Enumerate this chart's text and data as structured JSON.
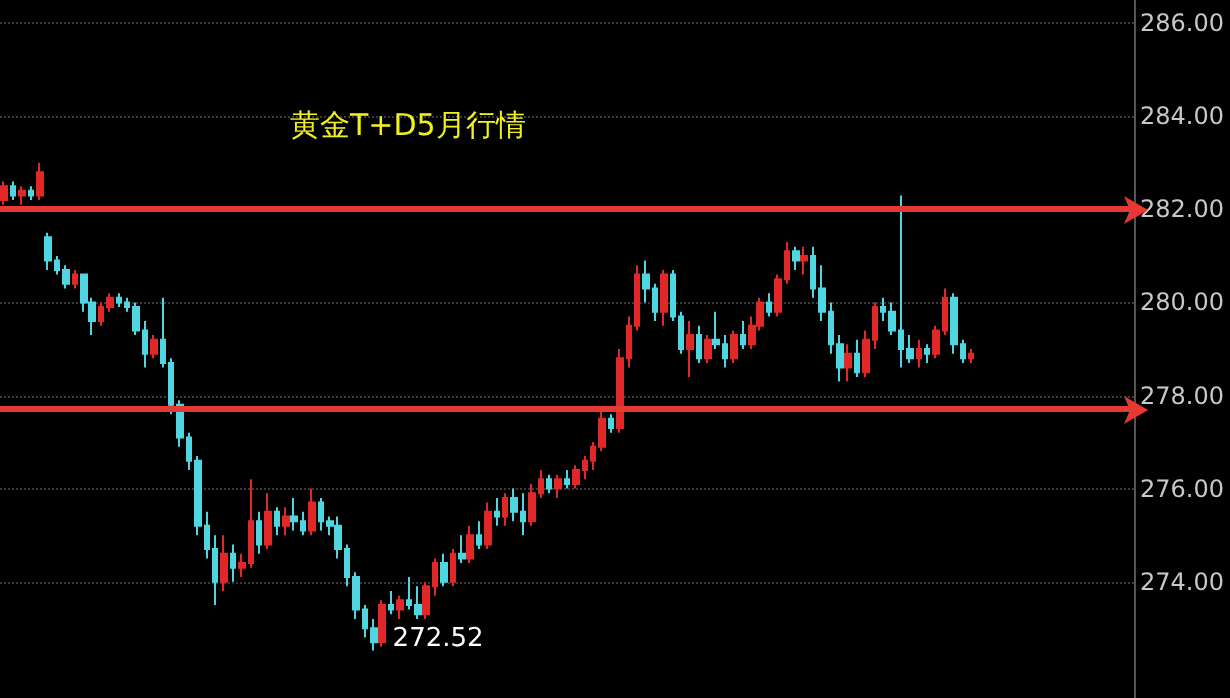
{
  "chart_data": {
    "type": "candlestick",
    "title": "黄金T+D5月行情",
    "categories": [
      null,
      null,
      null,
      null,
      null,
      null,
      null,
      null,
      null,
      null,
      null,
      null,
      null,
      null,
      null,
      null,
      null,
      null,
      null,
      null,
      null,
      null,
      null,
      null,
      null,
      null,
      null,
      null,
      null,
      null,
      null,
      null,
      null,
      null,
      null,
      null,
      null,
      null,
      null,
      null,
      null,
      null,
      null,
      null,
      null,
      null,
      null,
      null,
      null,
      null,
      null,
      null,
      null,
      null,
      null,
      null,
      null,
      null,
      null,
      null,
      null,
      null,
      null,
      null,
      null,
      null,
      null,
      null,
      null,
      null,
      null,
      null,
      null,
      null,
      null,
      null,
      null,
      null,
      null,
      null,
      null,
      null,
      null,
      null,
      null,
      null,
      null,
      null,
      null,
      null,
      null,
      null,
      null,
      null,
      null,
      null,
      null,
      null,
      null,
      null,
      null,
      null,
      null,
      null,
      null,
      null,
      null,
      null,
      null,
      null,
      null,
      null,
      null,
      null,
      null,
      null,
      null,
      null,
      null,
      null,
      null,
      null,
      null,
      null,
      null,
      null,
      null,
      null,
      null
    ],
    "ohlc": [
      [
        282.2,
        282.6,
        282.1,
        282.5
      ],
      [
        282.5,
        282.6,
        282.2,
        282.3
      ],
      [
        282.3,
        282.5,
        282.1,
        282.4
      ],
      [
        282.4,
        282.5,
        282.2,
        282.3
      ],
      [
        282.3,
        283.0,
        282.2,
        282.8
      ],
      [
        281.4,
        281.5,
        280.7,
        280.9
      ],
      [
        280.9,
        281.0,
        280.6,
        280.7
      ],
      [
        280.7,
        280.8,
        280.3,
        280.4
      ],
      [
        280.4,
        280.7,
        280.3,
        280.6
      ],
      [
        280.6,
        280.6,
        279.8,
        280.0
      ],
      [
        280.0,
        280.1,
        279.3,
        279.6
      ],
      [
        279.6,
        280.0,
        279.5,
        279.9
      ],
      [
        279.9,
        280.2,
        279.8,
        280.1
      ],
      [
        280.1,
        280.2,
        279.9,
        280.0
      ],
      [
        280.0,
        280.1,
        279.8,
        279.9
      ],
      [
        279.9,
        280.0,
        279.3,
        279.4
      ],
      [
        279.4,
        279.6,
        278.6,
        278.9
      ],
      [
        278.9,
        279.3,
        278.8,
        279.2
      ],
      [
        279.2,
        280.1,
        278.6,
        278.7
      ],
      [
        278.7,
        278.8,
        277.6,
        277.8
      ],
      [
        277.8,
        277.9,
        276.9,
        277.1
      ],
      [
        277.1,
        277.2,
        276.4,
        276.6
      ],
      [
        276.6,
        276.7,
        275.0,
        275.2
      ],
      [
        275.2,
        275.5,
        274.5,
        274.7
      ],
      [
        274.7,
        275.0,
        273.5,
        274.0
      ],
      [
        274.0,
        275.0,
        273.8,
        274.6
      ],
      [
        274.6,
        274.8,
        274.0,
        274.3
      ],
      [
        274.3,
        274.6,
        274.1,
        274.4
      ],
      [
        274.4,
        276.2,
        274.3,
        275.3
      ],
      [
        275.3,
        275.5,
        274.6,
        274.8
      ],
      [
        274.8,
        275.9,
        274.7,
        275.5
      ],
      [
        275.5,
        275.6,
        275.0,
        275.2
      ],
      [
        275.2,
        275.6,
        275.0,
        275.4
      ],
      [
        275.4,
        275.8,
        275.1,
        275.3
      ],
      [
        275.3,
        275.5,
        275.0,
        275.1
      ],
      [
        275.1,
        276.0,
        275.0,
        275.7
      ],
      [
        275.7,
        275.8,
        275.1,
        275.3
      ],
      [
        275.3,
        275.4,
        275.0,
        275.2
      ],
      [
        275.2,
        275.4,
        274.5,
        274.7
      ],
      [
        274.7,
        274.8,
        273.9,
        274.1
      ],
      [
        274.1,
        274.2,
        273.2,
        273.4
      ],
      [
        273.4,
        273.5,
        272.8,
        273.0
      ],
      [
        273.0,
        273.2,
        272.52,
        272.7
      ],
      [
        272.7,
        273.6,
        272.6,
        273.5
      ],
      [
        273.5,
        273.8,
        273.3,
        273.4
      ],
      [
        273.4,
        273.7,
        273.2,
        273.6
      ],
      [
        273.6,
        274.1,
        273.4,
        273.5
      ],
      [
        273.5,
        273.9,
        273.2,
        273.3
      ],
      [
        273.3,
        274.0,
        273.2,
        273.9
      ],
      [
        273.9,
        274.5,
        273.7,
        274.4
      ],
      [
        274.4,
        274.6,
        273.9,
        274.0
      ],
      [
        274.0,
        274.7,
        273.9,
        274.6
      ],
      [
        274.6,
        275.0,
        274.4,
        274.5
      ],
      [
        274.5,
        275.2,
        274.4,
        275.0
      ],
      [
        275.0,
        275.3,
        274.7,
        274.8
      ],
      [
        274.8,
        275.7,
        274.7,
        275.5
      ],
      [
        275.5,
        275.8,
        275.2,
        275.4
      ],
      [
        275.4,
        275.9,
        275.2,
        275.8
      ],
      [
        275.8,
        276.0,
        275.3,
        275.5
      ],
      [
        275.5,
        275.9,
        275.0,
        275.3
      ],
      [
        275.3,
        276.1,
        275.2,
        275.9
      ],
      [
        275.9,
        276.4,
        275.8,
        276.2
      ],
      [
        276.2,
        276.3,
        275.9,
        276.0
      ],
      [
        276.0,
        276.3,
        275.8,
        276.2
      ],
      [
        276.2,
        276.4,
        276.0,
        276.1
      ],
      [
        276.1,
        276.5,
        276.0,
        276.4
      ],
      [
        276.4,
        276.7,
        276.2,
        276.6
      ],
      [
        276.6,
        277.0,
        276.4,
        276.9
      ],
      [
        276.9,
        277.7,
        276.8,
        277.5
      ],
      [
        277.5,
        277.6,
        277.2,
        277.3
      ],
      [
        277.3,
        279.0,
        277.2,
        278.8
      ],
      [
        278.8,
        279.7,
        278.6,
        279.5
      ],
      [
        279.5,
        280.8,
        279.4,
        280.6
      ],
      [
        280.6,
        280.9,
        280.0,
        280.3
      ],
      [
        280.3,
        280.4,
        279.6,
        279.8
      ],
      [
        279.8,
        280.7,
        279.5,
        280.6
      ],
      [
        280.6,
        280.7,
        279.6,
        279.7
      ],
      [
        279.7,
        279.8,
        278.9,
        279.0
      ],
      [
        279.0,
        279.6,
        278.4,
        279.3
      ],
      [
        279.3,
        279.5,
        278.7,
        278.8
      ],
      [
        278.8,
        279.3,
        278.7,
        279.2
      ],
      [
        279.2,
        279.8,
        279.0,
        279.1
      ],
      [
        279.1,
        279.3,
        278.6,
        278.8
      ],
      [
        278.8,
        279.4,
        278.7,
        279.3
      ],
      [
        279.3,
        279.6,
        279.0,
        279.1
      ],
      [
        279.1,
        279.7,
        279.0,
        279.5
      ],
      [
        279.5,
        280.1,
        279.4,
        280.0
      ],
      [
        280.0,
        280.2,
        279.7,
        279.8
      ],
      [
        279.8,
        280.6,
        279.7,
        280.5
      ],
      [
        280.5,
        281.3,
        280.4,
        281.1
      ],
      [
        281.1,
        281.2,
        280.7,
        280.9
      ],
      [
        280.9,
        281.2,
        280.6,
        281.0
      ],
      [
        281.0,
        281.2,
        280.1,
        280.3
      ],
      [
        280.3,
        280.8,
        279.6,
        279.8
      ],
      [
        279.8,
        280.0,
        278.9,
        279.1
      ],
      [
        279.1,
        279.3,
        278.3,
        278.6
      ],
      [
        278.6,
        279.1,
        278.3,
        278.9
      ],
      [
        278.9,
        279.2,
        278.4,
        278.5
      ],
      [
        278.5,
        279.4,
        278.4,
        279.2
      ],
      [
        279.2,
        280.0,
        279.0,
        279.9
      ],
      [
        279.9,
        280.1,
        279.6,
        279.8
      ],
      [
        279.8,
        280.0,
        279.3,
        279.4
      ],
      [
        279.4,
        282.3,
        278.6,
        279.0
      ],
      [
        279.0,
        279.3,
        278.7,
        278.8
      ],
      [
        278.8,
        279.2,
        278.6,
        279.0
      ],
      [
        279.0,
        279.1,
        278.7,
        278.9
      ],
      [
        278.9,
        279.5,
        278.8,
        279.4
      ],
      [
        279.4,
        280.3,
        279.3,
        280.1
      ],
      [
        280.1,
        280.2,
        278.9,
        279.1
      ],
      [
        279.1,
        279.2,
        278.7,
        278.8
      ],
      [
        278.8,
        279.0,
        278.7,
        278.9
      ],
      null,
      null,
      null,
      null,
      null,
      null,
      null,
      null,
      null,
      null,
      null,
      null,
      null,
      null,
      null,
      null,
      null,
      null
    ],
    "colors": [
      "#e02828",
      "#4fd6e0",
      "#e02828",
      "#4fd6e0",
      "#e02828",
      "#4fd6e0",
      "#4fd6e0",
      "#4fd6e0",
      "#e02828",
      "#4fd6e0",
      "#4fd6e0",
      "#e02828",
      "#e02828",
      "#4fd6e0",
      "#4fd6e0",
      "#4fd6e0",
      "#4fd6e0",
      "#e02828",
      "#4fd6e0",
      "#4fd6e0",
      "#4fd6e0",
      "#4fd6e0",
      "#4fd6e0",
      "#4fd6e0",
      "#4fd6e0",
      "#e02828",
      "#4fd6e0",
      "#e02828",
      "#e02828",
      "#4fd6e0",
      "#e02828",
      "#4fd6e0",
      "#e02828",
      "#4fd6e0",
      "#4fd6e0",
      "#e02828",
      "#4fd6e0",
      "#4fd6e0",
      "#4fd6e0",
      "#4fd6e0",
      "#4fd6e0",
      "#4fd6e0",
      "#4fd6e0",
      "#e02828",
      "#4fd6e0",
      "#e02828",
      "#4fd6e0",
      "#4fd6e0",
      "#e02828",
      "#e02828",
      "#4fd6e0",
      "#e02828",
      "#4fd6e0",
      "#e02828",
      "#4fd6e0",
      "#e02828",
      "#4fd6e0",
      "#e02828",
      "#4fd6e0",
      "#4fd6e0",
      "#e02828",
      "#e02828",
      "#4fd6e0",
      "#e02828",
      "#4fd6e0",
      "#e02828",
      "#e02828",
      "#e02828",
      "#e02828",
      "#4fd6e0",
      "#e02828",
      "#e02828",
      "#e02828",
      "#4fd6e0",
      "#4fd6e0",
      "#e02828",
      "#4fd6e0",
      "#4fd6e0",
      "#e02828",
      "#4fd6e0",
      "#e02828",
      "#4fd6e0",
      "#4fd6e0",
      "#e02828",
      "#4fd6e0",
      "#e02828",
      "#e02828",
      "#4fd6e0",
      "#e02828",
      "#e02828",
      "#4fd6e0",
      "#e02828",
      "#4fd6e0",
      "#4fd6e0",
      "#4fd6e0",
      "#4fd6e0",
      "#e02828",
      "#4fd6e0",
      "#e02828",
      "#e02828",
      "#4fd6e0",
      "#4fd6e0",
      "#4fd6e0",
      "#4fd6e0",
      "#e02828",
      "#4fd6e0",
      "#e02828",
      "#e02828",
      "#4fd6e0",
      "#4fd6e0",
      "#e02828",
      null,
      null,
      null,
      null,
      null,
      null,
      null,
      null,
      null,
      null,
      null,
      null,
      null,
      null,
      null,
      null,
      null,
      null
    ],
    "ylim": [
      271.5,
      286.5
    ],
    "yticks": [
      {
        "value": 274,
        "label": "274.00"
      },
      {
        "value": 276,
        "label": "276.00"
      },
      {
        "value": 278,
        "label": "278.00"
      },
      {
        "value": 280,
        "label": "280.00"
      },
      {
        "value": 282,
        "label": "282.00"
      },
      {
        "value": 284,
        "label": "284.00"
      },
      {
        "value": 286,
        "label": "286.00"
      }
    ],
    "tick_labels": "y",
    "grid": "y",
    "line_style": "dotted",
    "ref_lines": [
      {
        "axis": "y",
        "value": 282.0,
        "color": "#e53935"
      },
      {
        "axis": "y",
        "value": 277.7,
        "color": "#e53935"
      }
    ],
    "annotations": [
      "272.52"
    ]
  }
}
